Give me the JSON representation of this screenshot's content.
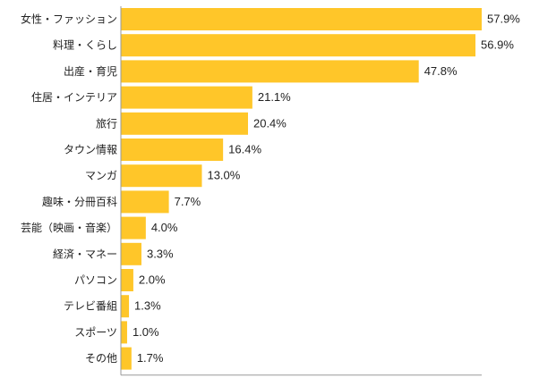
{
  "chart_data": {
    "type": "bar",
    "orientation": "horizontal",
    "categories": [
      "女性・ファッション",
      "料理・くらし",
      "出産・育児",
      "住居・インテリア",
      "旅行",
      "タウン情報",
      "マンガ",
      "趣味・分冊百科",
      "芸能（映画・音楽）",
      "経済・マネー",
      "パソコン",
      "テレビ番組",
      "スポーツ",
      "その他"
    ],
    "values": [
      57.9,
      56.9,
      47.8,
      21.1,
      20.4,
      16.4,
      13.0,
      7.7,
      4.0,
      3.3,
      2.0,
      1.3,
      1.0,
      1.7
    ],
    "value_labels": [
      "57.9%",
      "56.9%",
      "47.8%",
      "21.1%",
      "20.4%",
      "16.4%",
      "13.0%",
      "7.7%",
      "4.0%",
      "3.3%",
      "2.0%",
      "1.3%",
      "1.0%",
      "1.7%"
    ],
    "xlim": [
      0,
      57.9
    ],
    "bar_color": "#FFC629",
    "axis_color": "#999999",
    "grid": false,
    "legend": "none"
  }
}
